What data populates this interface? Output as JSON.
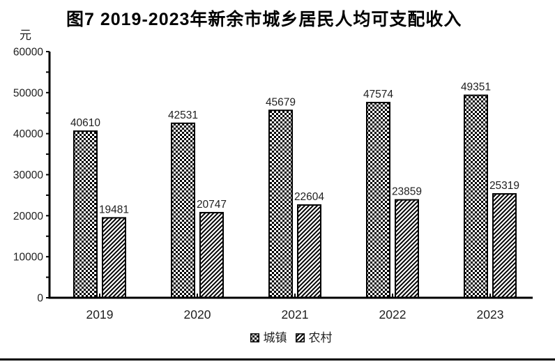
{
  "chart_data": {
    "type": "bar",
    "title": "图7  2019-2023年新余市城乡居民人均可支配收入",
    "unit_label": "元",
    "categories": [
      "2019",
      "2020",
      "2021",
      "2022",
      "2023"
    ],
    "series": [
      {
        "name": "城镇",
        "pattern": "diagonal-checker",
        "values": [
          40610,
          42531,
          45679,
          47574,
          49351
        ]
      },
      {
        "name": "农村",
        "pattern": "diagonal-lines",
        "values": [
          19481,
          20747,
          22604,
          23859,
          25319
        ]
      }
    ],
    "ylim": [
      0,
      60000
    ],
    "ytick_major_interval": 10000,
    "ytick_minor_interval": 5000,
    "ytick_labels": [
      "0",
      "10000",
      "20000",
      "30000",
      "40000",
      "50000",
      "60000"
    ],
    "data_labels_shown": true,
    "grid": false,
    "legend_position": "bottom",
    "bar_outline_color": "#000000",
    "text_color": "#1f1f1f",
    "background_color": "#ffffff"
  }
}
